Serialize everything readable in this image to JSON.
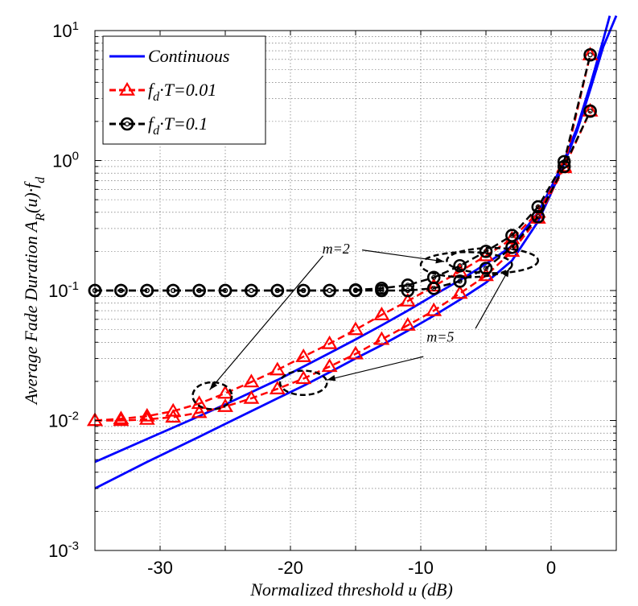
{
  "chart_data": {
    "type": "line",
    "xlabel": "Normalized threshold u (dB)",
    "ylabel": "Average Fade Duration A_R(u)·f_d",
    "xlim": [
      -35,
      5
    ],
    "ylim": [
      0.001,
      10
    ],
    "yscale": "log",
    "grid": true,
    "x_tick_labels": [
      "-30",
      "-20",
      "-10",
      "0"
    ],
    "x_ticks": [
      -30,
      -20,
      -10,
      0
    ],
    "y_ticks": [
      {
        "value": 0.001,
        "base": "10",
        "exp": "-3"
      },
      {
        "value": 0.01,
        "base": "10",
        "exp": "-2"
      },
      {
        "value": 0.1,
        "base": "10",
        "exp": "-1"
      },
      {
        "value": 1,
        "base": "10",
        "exp": "0"
      },
      {
        "value": 10,
        "base": "10",
        "exp": "1"
      }
    ],
    "legend": {
      "position": "top-left",
      "entries": [
        {
          "name": "Continuous",
          "main": "Continuous",
          "sub": "",
          "tail": "",
          "color": "#0000ff",
          "marker": "none",
          "dash": "solid"
        },
        {
          "name": "f_d·T=0.01",
          "main": "f",
          "sub": "d",
          "tail": "·T=0.01",
          "color": "#ff0000",
          "marker": "triangle",
          "dash": "dashed"
        },
        {
          "name": "f_d·T=0.1",
          "main": "f",
          "sub": "d",
          "tail": "·T=0.1",
          "color": "#000000",
          "marker": "circle",
          "dash": "dashed"
        }
      ]
    },
    "series": [
      {
        "name": "Continuous m=2",
        "color": "#0000ff",
        "dash": "solid",
        "marker": "none",
        "x": [
          -35,
          -31,
          -27,
          -25,
          -23,
          -21,
          -19,
          -17,
          -15,
          -13,
          -11,
          -9,
          -7,
          -5,
          -3,
          -1,
          0,
          1,
          2,
          3,
          4,
          4.5
        ],
        "y": [
          0.0048,
          0.0072,
          0.0108,
          0.0133,
          0.0165,
          0.0205,
          0.026,
          0.033,
          0.042,
          0.054,
          0.07,
          0.092,
          0.12,
          0.16,
          0.22,
          0.4,
          0.62,
          1.0,
          1.8,
          3.8,
          8.5,
          13
        ]
      },
      {
        "name": "Continuous m=5",
        "color": "#0000ff",
        "dash": "solid",
        "marker": "none",
        "x": [
          -35,
          -31,
          -27,
          -25,
          -23,
          -21,
          -19,
          -17,
          -15,
          -13,
          -11,
          -9,
          -7,
          -5,
          -3,
          -1,
          0,
          1,
          2,
          3,
          4,
          5
        ],
        "y": [
          0.003,
          0.0048,
          0.0075,
          0.0094,
          0.0118,
          0.0148,
          0.0185,
          0.0235,
          0.03,
          0.038,
          0.049,
          0.064,
          0.085,
          0.115,
          0.17,
          0.34,
          0.56,
          0.95,
          1.7,
          3.5,
          7.5,
          13
        ]
      },
      {
        "name": "f_d·T=0.01 m=2",
        "color": "#ff0000",
        "dash": "dashed",
        "marker": "triangle",
        "x": [
          -35,
          -33,
          -31,
          -29,
          -27,
          -25,
          -23,
          -21,
          -19,
          -17,
          -15,
          -13,
          -11,
          -9,
          -7,
          -5,
          -3,
          -1,
          1,
          3
        ],
        "y": [
          0.01,
          0.0103,
          0.0108,
          0.0118,
          0.0135,
          0.0162,
          0.0198,
          0.0245,
          0.031,
          0.039,
          0.05,
          0.065,
          0.083,
          0.108,
          0.14,
          0.185,
          0.25,
          0.4,
          0.9,
          6.5
        ]
      },
      {
        "name": "f_d·T=0.01 m=5",
        "color": "#ff0000",
        "dash": "dashed",
        "marker": "triangle",
        "x": [
          -35,
          -33,
          -31,
          -29,
          -27,
          -25,
          -23,
          -21,
          -19,
          -17,
          -15,
          -13,
          -11,
          -9,
          -7,
          -5,
          -3,
          -1,
          1,
          3
        ],
        "y": [
          0.01,
          0.01,
          0.0102,
          0.0106,
          0.0115,
          0.0128,
          0.0148,
          0.0175,
          0.021,
          0.026,
          0.0325,
          0.042,
          0.054,
          0.07,
          0.095,
          0.13,
          0.2,
          0.36,
          0.88,
          2.4
        ]
      },
      {
        "name": "f_d·T=0.1 m=2",
        "color": "#000000",
        "dash": "dashed",
        "marker": "circle",
        "x": [
          -35,
          -33,
          -31,
          -29,
          -27,
          -25,
          -23,
          -21,
          -19,
          -17,
          -15,
          -13,
          -11,
          -9,
          -7,
          -5,
          -3,
          -1,
          1,
          3
        ],
        "y": [
          0.1,
          0.1,
          0.1,
          0.1,
          0.1,
          0.1,
          0.1,
          0.1,
          0.1,
          0.1,
          0.101,
          0.104,
          0.11,
          0.126,
          0.155,
          0.2,
          0.265,
          0.44,
          0.98,
          6.5
        ]
      },
      {
        "name": "f_d·T=0.1 m=5",
        "color": "#000000",
        "dash": "dashed",
        "marker": "circle",
        "x": [
          -35,
          -33,
          -31,
          -29,
          -27,
          -25,
          -23,
          -21,
          -19,
          -17,
          -15,
          -13,
          -11,
          -9,
          -7,
          -5,
          -3,
          -1,
          1,
          3
        ],
        "y": [
          0.1,
          0.1,
          0.1,
          0.1,
          0.1,
          0.1,
          0.1,
          0.1,
          0.1,
          0.1,
          0.1,
          0.1,
          0.1,
          0.104,
          0.118,
          0.148,
          0.215,
          0.37,
          0.9,
          2.4
        ]
      }
    ],
    "annotations": [
      {
        "text": "m=2",
        "x": -16.5,
        "y": 0.21,
        "ellipses": [
          {
            "cx": -26,
            "cy": 0.0155,
            "rx": 1.5,
            "ry_factor": 1.27
          },
          {
            "cx": -6.5,
            "cy": 0.158,
            "rx": 3.5,
            "ry_factor": 1.25
          }
        ],
        "arrows": [
          {
            "from_x": -17.5,
            "from_y": 0.185,
            "to_x": -26.2,
            "to_y": 0.0172
          },
          {
            "from_x": -14.5,
            "from_y": 0.205,
            "to_x": -8.2,
            "to_y": 0.167
          }
        ]
      },
      {
        "text": "m=5",
        "x": -8.5,
        "y": 0.044,
        "ellipses": [
          {
            "cx": -19,
            "cy": 0.0195,
            "rx": 1.8,
            "ry_factor": 1.24
          },
          {
            "cx": -4.5,
            "cy": 0.17,
            "rx": 3.5,
            "ry_factor": 1.25
          }
        ],
        "arrows": [
          {
            "from_x": -9.8,
            "from_y": 0.031,
            "to_x": -17.2,
            "to_y": 0.0205
          },
          {
            "from_x": -5.8,
            "from_y": 0.051,
            "to_x": -3.2,
            "to_y": 0.148
          }
        ]
      }
    ]
  }
}
